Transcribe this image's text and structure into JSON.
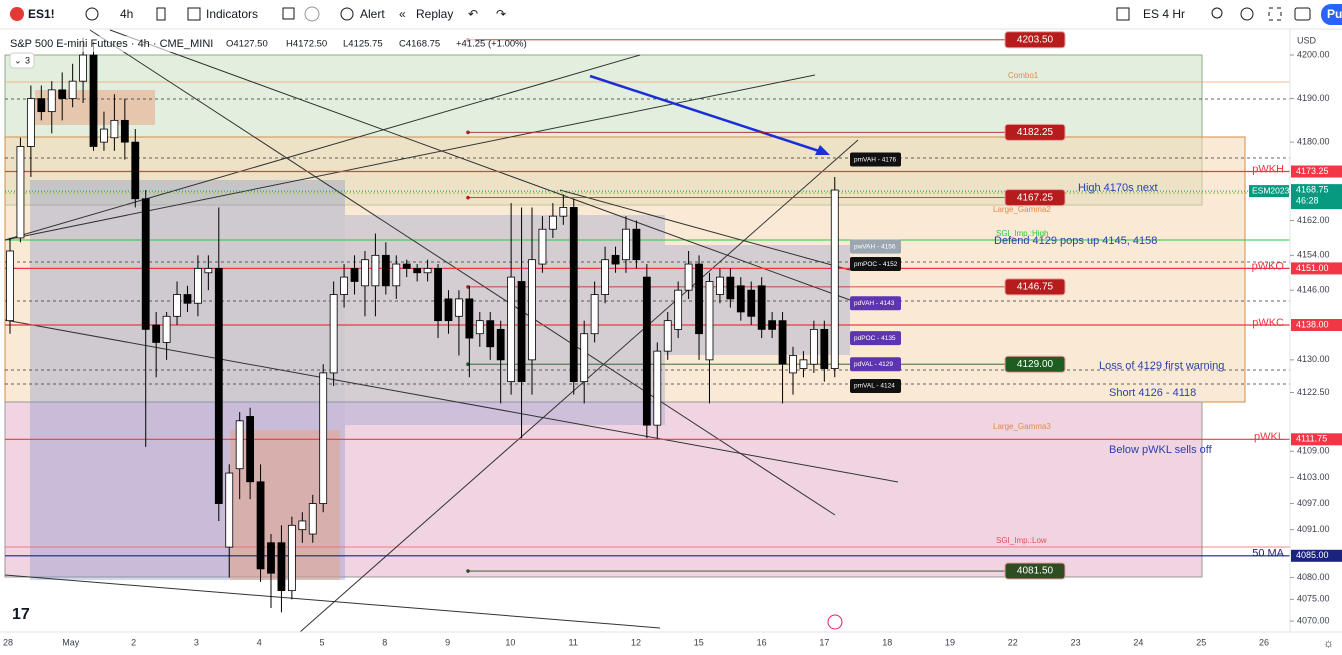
{
  "toolbar": {
    "symbol": "ES1!",
    "interval": "4h",
    "indicators": "Indicators",
    "alert": "Alert",
    "replay": "Replay",
    "layout": "ES 4 Hr",
    "publish": "Pu"
  },
  "legend": {
    "title": "S&P 500 E-mini Futures · 4h · CME_MINI",
    "open": "O4127.50",
    "high": "H4172.50",
    "low": "L4125.75",
    "close": "C4168.75",
    "change": "+41.25 (+1.00%)",
    "collapsed_count": "3"
  },
  "annotations": [
    "High 4170s next",
    "Defend 4129 pops up  4145, 4158",
    "Loss of 4129 first warning",
    "Short 4126 - 4118",
    "Below pWKL sells off",
    "Combo1",
    "Large_Gamma2",
    "Large_Gamma3",
    "SGI_Imp.:Low",
    "SGI_Imp.:High"
  ],
  "chart_data": {
    "type": "candlestick",
    "unit": "USD",
    "ylim": [
      4067.5,
      4205.75
    ],
    "yticks": [
      {
        "value": 4200,
        "label": "4200.00"
      },
      {
        "value": 4190,
        "label": "4190.00"
      },
      {
        "value": 4180,
        "label": "4180.00"
      },
      {
        "value": 4162,
        "label": "4162.00"
      },
      {
        "value": 4154,
        "label": "4154.00"
      },
      {
        "value": 4146,
        "label": "4146.00"
      },
      {
        "value": 4130,
        "label": "4130.00"
      },
      {
        "value": 4122.5,
        "label": "4122.50"
      },
      {
        "value": 4109,
        "label": "4109.00"
      },
      {
        "value": 4103,
        "label": "4103.00"
      },
      {
        "value": 4097,
        "label": "4097.00"
      },
      {
        "value": 4091,
        "label": "4091.00"
      },
      {
        "value": 4080,
        "label": "4080.00"
      },
      {
        "value": 4075,
        "label": "4075.00"
      },
      {
        "value": 4070,
        "label": "4070.00"
      }
    ],
    "x_labels": [
      "28",
      "May",
      "2",
      "3",
      "4",
      "5",
      "8",
      "9",
      "10",
      "11",
      "12",
      "15",
      "16",
      "17",
      "18",
      "19",
      "22",
      "23",
      "24",
      "25",
      "26"
    ],
    "up_color": "#ffffff",
    "down_color": "#000000",
    "open": [
      4139,
      4158,
      4179,
      4190,
      4187,
      4192,
      4190,
      4194,
      4200,
      4180,
      4181,
      4185,
      4180,
      4167,
      4138,
      4134,
      4140,
      4145,
      4143,
      4150,
      4151,
      4087,
      4105,
      4117,
      4102,
      4088,
      4088,
      4077,
      4091,
      4090,
      4097,
      4127,
      4145,
      4151,
      4147,
      4147,
      4154,
      4147,
      4152,
      4151,
      4150,
      4151,
      4144,
      4140,
      4144,
      4136,
      4139,
      4137,
      4125,
      4148,
      4130,
      4152,
      4160,
      4163,
      4165,
      4125,
      4136,
      4145,
      4154,
      4153,
      4160,
      4149,
      4115,
      4132,
      4137,
      4146,
      4152,
      4130,
      4145,
      4149,
      4147,
      4146,
      4147,
      4139,
      4139,
      4127,
      4128,
      4129,
      4137,
      4128
    ],
    "high": [
      4158,
      4181,
      4193,
      4193,
      4194,
      4196,
      4198,
      4204,
      4203,
      4187,
      4191,
      4190,
      4183,
      4169,
      4141,
      4141,
      4148,
      4147,
      4154,
      4154,
      4165,
      4106,
      4118,
      4119,
      4106,
      4090,
      4092,
      4094,
      4095,
      4099,
      4129,
      4148,
      4152,
      4154,
      4155,
      4159,
      4157,
      4154,
      4153,
      4152,
      4153,
      4152,
      4146,
      4146,
      4147,
      4141,
      4141,
      4139,
      4166,
      4165,
      4165,
      4163,
      4166,
      4168,
      4167,
      4139,
      4148,
      4156,
      4156,
      4163,
      4162,
      4152,
      4134,
      4141,
      4148,
      4155,
      4154,
      4150,
      4151,
      4151,
      4149,
      4148,
      4149,
      4141,
      4141,
      4133,
      4132,
      4139,
      4139,
      4172
    ],
    "low": [
      4136,
      4157,
      4172,
      4185,
      4182,
      4185,
      4188,
      4189,
      4178,
      4178,
      4178,
      4176,
      4165,
      4110,
      4126,
      4130,
      4138,
      4141,
      4140,
      4146,
      4093,
      4080,
      4098,
      4098,
      4079,
      4073,
      4072,
      4075,
      4088,
      4088,
      4095,
      4124,
      4142,
      4145,
      4140,
      4140,
      4145,
      4144,
      4149,
      4148,
      4148,
      4135,
      4136,
      4131,
      4126,
      4133,
      4130,
      4120,
      4122,
      4112,
      4122,
      4150,
      4158,
      4161,
      4122,
      4120,
      4134,
      4143,
      4150,
      4150,
      4151,
      4112,
      4112,
      4130,
      4135,
      4144,
      4130,
      4120,
      4143,
      4142,
      4139,
      4138,
      4135,
      4135,
      4120,
      4122,
      4126,
      4127,
      4125,
      4126
    ],
    "close": [
      4155,
      4179,
      4190,
      4187,
      4192,
      4190,
      4194,
      4200,
      4179,
      4183,
      4185,
      4180,
      4167,
      4137,
      4134,
      4140,
      4145,
      4143,
      4151,
      4151,
      4097,
      4104,
      4116,
      4102,
      4082,
      4081,
      4077,
      4092,
      4093,
      4097,
      4127,
      4145,
      4149,
      4148,
      4153,
      4154,
      4147,
      4152,
      4151,
      4150,
      4151,
      4139,
      4139,
      4144,
      4135,
      4139,
      4133,
      4130,
      4149,
      4125,
      4153,
      4160,
      4163,
      4165,
      4125,
      4136,
      4145,
      4153,
      4152,
      4160,
      4153,
      4115,
      4132,
      4139,
      4146,
      4152,
      4136,
      4148,
      4149,
      4144,
      4141,
      4140,
      4137,
      4137,
      4129,
      4131,
      4130,
      4137,
      4128,
      4169
    ],
    "price_levels": [
      {
        "name": "pWKH",
        "value": 4173.25,
        "label": "4173.25",
        "color": "#f23645"
      },
      {
        "name": "pWKO",
        "value": 4151,
        "label": "4151.00",
        "color": "#f23645"
      },
      {
        "name": "pWKC",
        "value": 4138,
        "label": "4138.00",
        "color": "#f23645"
      },
      {
        "name": "pWKL",
        "value": 4111.75,
        "label": "4111.75",
        "color": "#f23645"
      },
      {
        "name": "50 MA",
        "value": 4085,
        "label": "4085.00",
        "color": "#1a237e"
      }
    ],
    "last_price": {
      "name": "ESM2023",
      "value": 4168.75,
      "label": "4168.75",
      "countdown": "46:28",
      "color": "#089981"
    },
    "price_boxes": [
      {
        "value": 4203.5,
        "label": "4203.50",
        "color": "#b71c1c"
      },
      {
        "value": 4182.25,
        "label": "4182.25",
        "color": "#b71c1c"
      },
      {
        "value": 4167.25,
        "label": "4167.25",
        "color": "#b71c1c"
      },
      {
        "value": 4146.75,
        "label": "4146.75",
        "color": "#b71c1c"
      },
      {
        "value": 4129,
        "label": "4129.00",
        "color": "#1b5e20"
      },
      {
        "value": 4081.5,
        "label": "4081.50",
        "color": "#2e4d23"
      }
    ],
    "level_tags": [
      {
        "value": 4176,
        "label": "pmVAH - 4176",
        "color": "#111111"
      },
      {
        "value": 4156,
        "label": "pwVAH - 4156",
        "color": "#9aa7b0"
      },
      {
        "value": 4152,
        "label": "pmPOC - 4152",
        "color": "#111111"
      },
      {
        "value": 4143,
        "label": "pdVAH - 4143",
        "color": "#5e35b1"
      },
      {
        "value": 4135,
        "label": "pdPOC - 4135",
        "color": "#5e35b1"
      },
      {
        "value": 4129,
        "label": "pdVAL - 4129",
        "color": "#5e35b1"
      },
      {
        "value": 4124,
        "label": "pmVAL - 4124",
        "color": "#111111"
      }
    ]
  }
}
